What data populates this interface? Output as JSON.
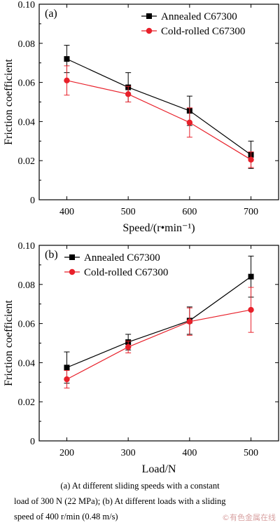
{
  "chart_data": [
    {
      "type": "line",
      "panel_label": "(a)",
      "xlabel": "Speed/(r•min⁻¹)",
      "ylabel": "Friction coefficient",
      "x": [
        400,
        500,
        600,
        700
      ],
      "xticks": [
        "400",
        "500",
        "600",
        "700"
      ],
      "xlim": [
        355,
        745
      ],
      "ylim": [
        0,
        0.1
      ],
      "yticks": [
        "0",
        "0.02",
        "0.04",
        "0.06",
        "0.08",
        "0.10"
      ],
      "legend_position": "top-right",
      "series": [
        {
          "name": "Annealed C67300",
          "color": "#000000",
          "marker": "square",
          "values": [
            0.072,
            0.0575,
            0.0455,
            0.023
          ],
          "errors": [
            0.007,
            0.0075,
            0.0075,
            0.007
          ]
        },
        {
          "name": "Cold-rolled C67300",
          "color": "#e8202a",
          "marker": "circle",
          "values": [
            0.061,
            0.054,
            0.0395,
            0.0205
          ],
          "errors": [
            0.0075,
            0.004,
            0.0075,
            0.004
          ]
        }
      ]
    },
    {
      "type": "line",
      "panel_label": "(b)",
      "xlabel": "Load/N",
      "ylabel": "Friction coefficient",
      "x": [
        200,
        300,
        400,
        500
      ],
      "xticks": [
        "200",
        "300",
        "400",
        "500"
      ],
      "xlim": [
        155,
        545
      ],
      "ylim": [
        0,
        0.1
      ],
      "yticks": [
        "0",
        "0.02",
        "0.04",
        "0.06",
        "0.08",
        "0.10"
      ],
      "legend_position": "top-left",
      "series": [
        {
          "name": "Annealed C67300",
          "color": "#000000",
          "marker": "square",
          "values": [
            0.0375,
            0.0505,
            0.0615,
            0.084
          ],
          "errors": [
            0.008,
            0.004,
            0.007,
            0.0105
          ]
        },
        {
          "name": "Cold-rolled C67300",
          "color": "#e8202a",
          "marker": "circle",
          "values": [
            0.0315,
            0.048,
            0.061,
            0.067
          ],
          "errors": [
            0.0045,
            0.003,
            0.007,
            0.0115
          ]
        }
      ]
    }
  ],
  "caption": {
    "line1": "(a) At different sliding speeds with a constant",
    "line2": "load of 300 N (22 MPa); (b) At different loads with a sliding",
    "line3": "speed of 400 r/min (0.48 m/s)"
  },
  "watermark": "©有色金属在线"
}
